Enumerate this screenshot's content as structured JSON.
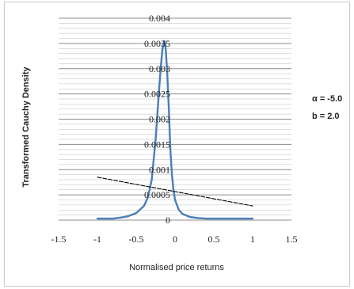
{
  "chart_data": {
    "type": "line",
    "title": "",
    "xlabel": "Normalised price returns",
    "ylabel": "Transformed Cauchy Density",
    "xlim": [
      -1.5,
      1.5
    ],
    "ylim": [
      0,
      0.004
    ],
    "x_ticks": [
      "-1.5",
      "-1",
      "-0.5",
      "0",
      "0.5",
      "1",
      "1.5"
    ],
    "y_ticks": [
      "0",
      "0.0005",
      "0.001",
      "0.0015",
      "0.002",
      "0.0025",
      "0.003",
      "0.0035",
      "0.004"
    ],
    "grid": true,
    "legend": "none",
    "annotations": [
      "α = -5.0",
      "b = 2.0"
    ],
    "series": [
      {
        "color": "#4a7ebb",
        "style": "solid",
        "x": [
          -1.0,
          -0.9,
          -0.8,
          -0.7,
          -0.6,
          -0.5,
          -0.4,
          -0.35,
          -0.3,
          -0.25,
          -0.2,
          -0.18,
          -0.16,
          -0.14,
          -0.13,
          -0.12,
          -0.1,
          -0.08,
          -0.06,
          -0.04,
          -0.02,
          0.0,
          0.05,
          0.1,
          0.2,
          0.3,
          0.4,
          0.5,
          0.7,
          1.0
        ],
        "y": [
          3e-05,
          3e-05,
          3e-05,
          5e-05,
          8e-05,
          0.00014,
          0.00028,
          0.00045,
          0.0008,
          0.0016,
          0.0027,
          0.0031,
          0.0034,
          0.00355,
          0.00352,
          0.0034,
          0.0029,
          0.0022,
          0.0014,
          0.0009,
          0.0006,
          0.0004,
          0.0002,
          0.00012,
          6e-05,
          4e-05,
          3e-05,
          3e-05,
          3e-05,
          3e-05
        ]
      },
      {
        "color": "#000000",
        "style": "dashed",
        "x": [
          -1.0,
          1.0
        ],
        "y": [
          0.00085,
          0.00028
        ]
      }
    ]
  }
}
